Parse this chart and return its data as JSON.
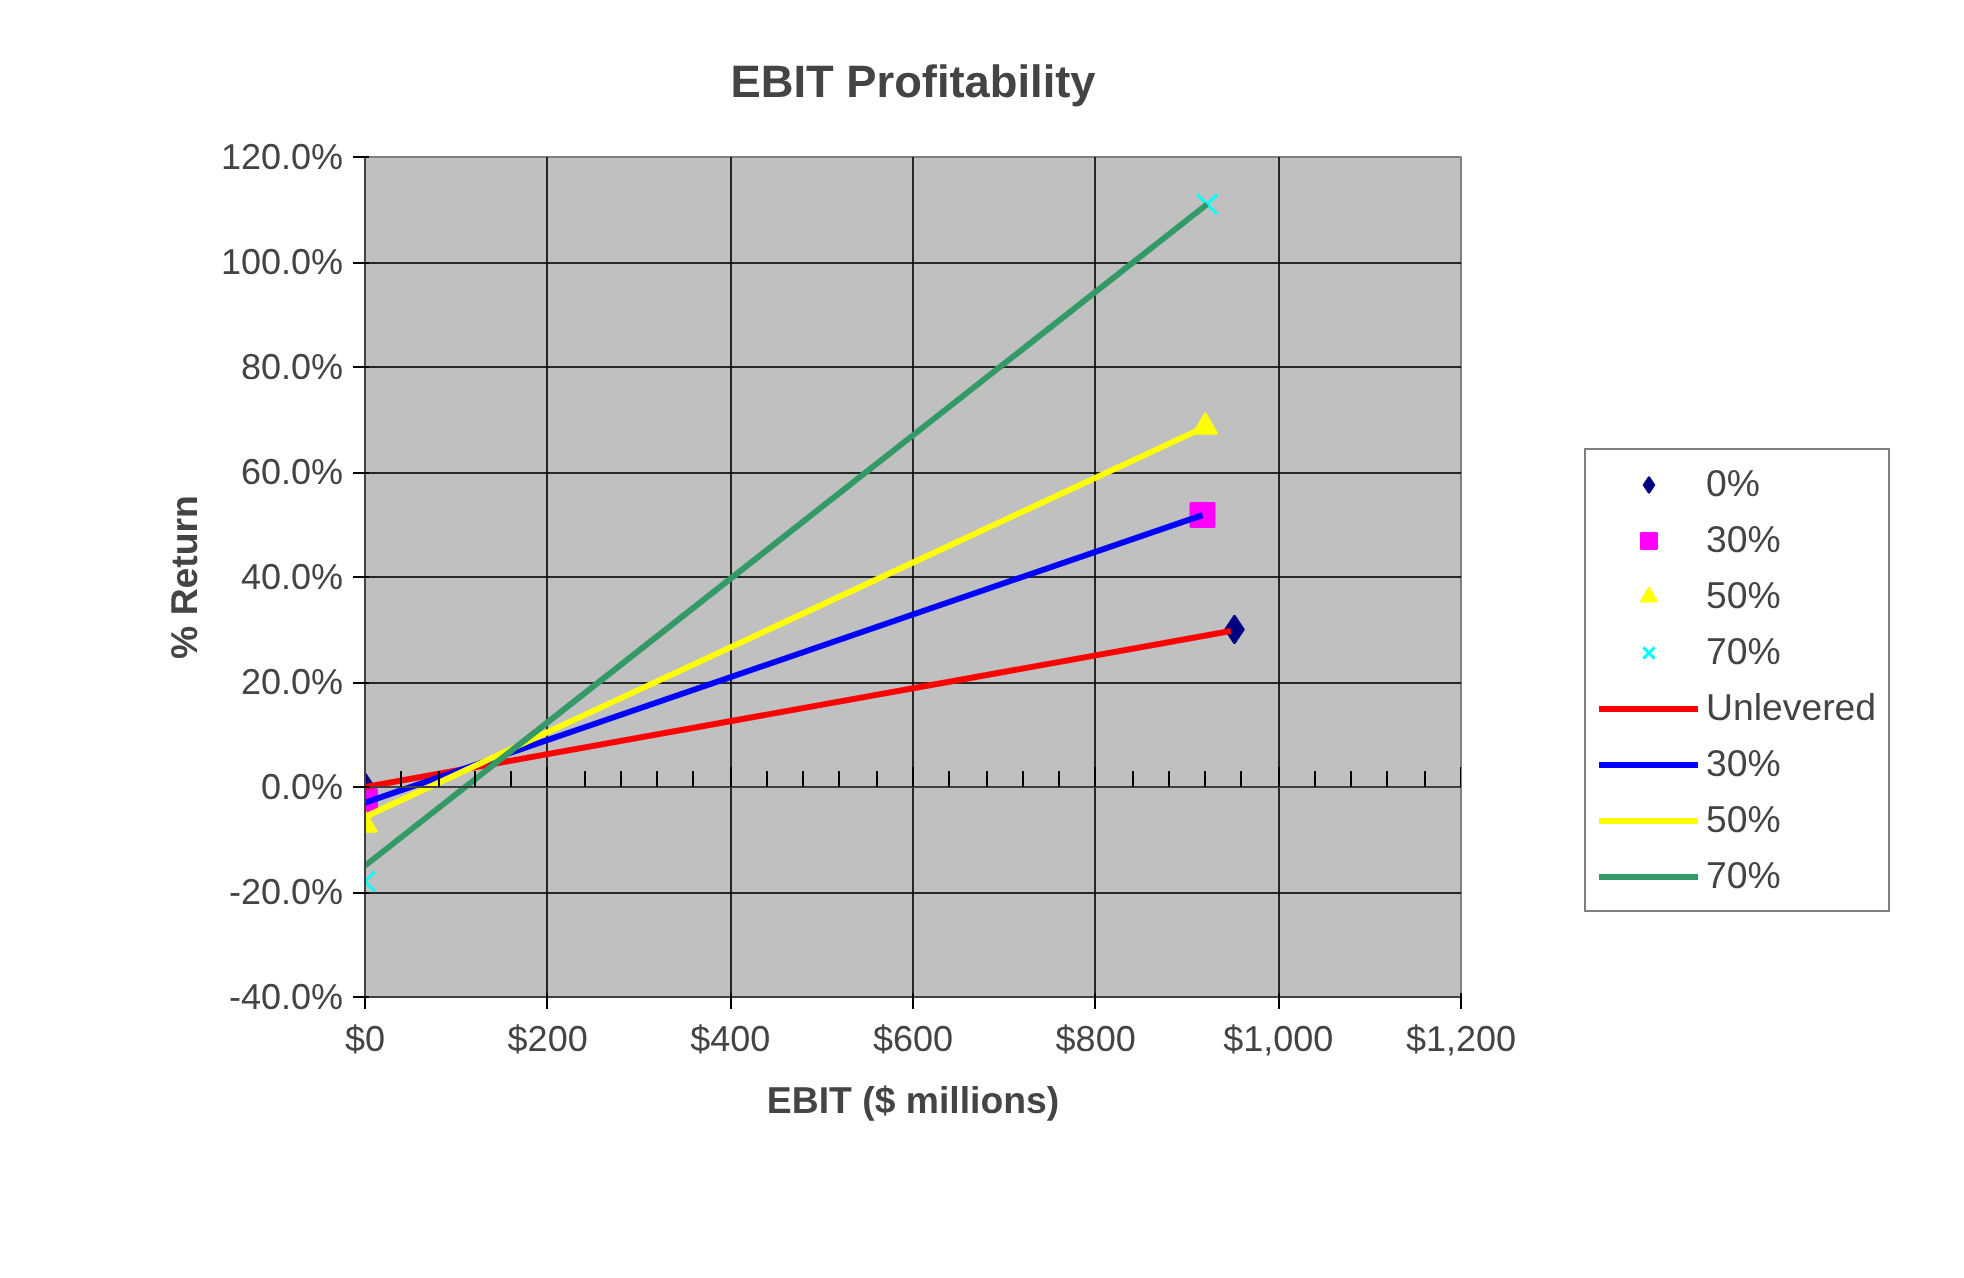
{
  "chart_data": {
    "type": "scatter",
    "title": "EBIT Profitability",
    "xlabel": "EBIT ($ millions)",
    "ylabel": "% Return",
    "xlim": [
      0,
      1200
    ],
    "xticks": [
      {
        "value": 0,
        "label": "$0"
      },
      {
        "value": 200,
        "label": "$200"
      },
      {
        "value": 400,
        "label": "$400"
      },
      {
        "value": 600,
        "label": "$600"
      },
      {
        "value": 800,
        "label": "$800"
      },
      {
        "value": 1000,
        "label": "$1,000"
      },
      {
        "value": 1200,
        "label": "$1,200"
      }
    ],
    "ylim": [
      -40,
      120
    ],
    "yticks": [
      {
        "value": -40,
        "label": "-40.0%"
      },
      {
        "value": -20,
        "label": "-20.0%"
      },
      {
        "value": 0,
        "label": "0.0%"
      },
      {
        "value": 20,
        "label": "20.0%"
      },
      {
        "value": 40,
        "label": "40.0%"
      },
      {
        "value": 60,
        "label": "60.0%"
      },
      {
        "value": 80,
        "label": "80.0%"
      },
      {
        "value": 100,
        "label": "100.0%"
      },
      {
        "value": 120,
        "label": "120.0%"
      }
    ],
    "grid": true,
    "legend": "right",
    "series": [
      {
        "name": "0%",
        "type": "scatter",
        "marker": "diamond",
        "color": "#000080",
        "x": [
          0,
          952
        ],
        "values": [
          0,
          30
        ]
      },
      {
        "name": "30%",
        "type": "scatter",
        "marker": "square",
        "color": "#ff00ff",
        "x": [
          0,
          917
        ],
        "values": [
          -2.7,
          51.8
        ]
      },
      {
        "name": "50%",
        "type": "scatter",
        "marker": "triangle",
        "color": "#ffff00",
        "x": [
          0,
          920
        ],
        "values": [
          -7.2,
          68.6
        ]
      },
      {
        "name": "70%",
        "type": "scatter",
        "marker": "cross",
        "color": "#00ffff",
        "x": [
          0,
          922
        ],
        "values": [
          -18,
          111
        ]
      },
      {
        "name": "Unlevered",
        "type": "line",
        "marker": "none",
        "color": "#ff0000",
        "x": [
          0,
          948
        ],
        "values": [
          0,
          29.7
        ]
      },
      {
        "name": "30%",
        "type": "line",
        "marker": "none",
        "color": "#0000ff",
        "x": [
          0,
          917
        ],
        "values": [
          -3,
          51.8
        ]
      },
      {
        "name": "50%",
        "type": "line",
        "marker": "none",
        "color": "#ffff00",
        "x": [
          0,
          920
        ],
        "values": [
          -5.7,
          68.6
        ]
      },
      {
        "name": "70%",
        "type": "line",
        "marker": "none",
        "color": "#339966",
        "x": [
          0,
          922
        ],
        "values": [
          -15,
          111
        ]
      }
    ]
  }
}
